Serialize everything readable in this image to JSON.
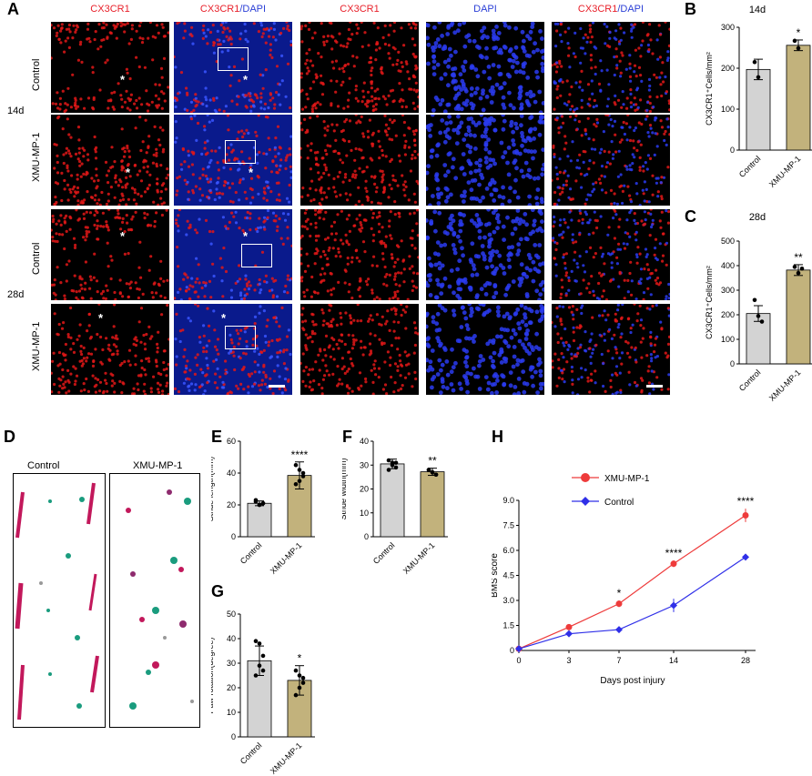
{
  "panels": {
    "A": "A",
    "B": "B",
    "C": "C",
    "D": "D",
    "E": "E",
    "F": "F",
    "G": "G",
    "H": "H"
  },
  "column_headers": [
    {
      "parts": [
        {
          "text": "CX3CR1",
          "color": "red"
        }
      ]
    },
    {
      "parts": [
        {
          "text": "CX3CR1",
          "color": "red"
        },
        {
          "text": "/DAPI",
          "color": "blue"
        }
      ]
    },
    {
      "parts": [
        {
          "text": "CX3CR1",
          "color": "red"
        }
      ]
    },
    {
      "parts": [
        {
          "text": "DAPI",
          "color": "blue"
        }
      ]
    },
    {
      "parts": [
        {
          "text": "CX3CR1",
          "color": "red"
        },
        {
          "text": "/DAPI",
          "color": "blue"
        }
      ]
    }
  ],
  "row_labels": [
    "Control",
    "XMU-MP-1",
    "Control",
    "XMU-MP-1"
  ],
  "time_labels": [
    "14d",
    "28d"
  ],
  "image_star": "*",
  "footprint_labels": [
    "Control",
    "XMU-MP-1"
  ],
  "colors": {
    "red": "#e8202a",
    "blue": "#2b3fd6",
    "control_bar": "#d3d3d3",
    "treat_bar": "#c2b27c",
    "line_red": "#ee3b3b",
    "line_blue": "#2f2fe8"
  },
  "chart_data": [
    {
      "id": "B",
      "type": "bar",
      "title": "14d",
      "ylabel": "CX3CR1⁺Cells/mm²",
      "categories": [
        "Control",
        "XMU-MP-1"
      ],
      "values": [
        197,
        256
      ],
      "errors": [
        25,
        13
      ],
      "points": [
        [
          215,
          178
        ],
        [
          267,
          249
        ]
      ],
      "ylim": [
        0,
        300
      ],
      "yticks": [
        0,
        100,
        200,
        300
      ],
      "sig": [
        "",
        "*"
      ]
    },
    {
      "id": "C",
      "type": "bar",
      "title": "28d",
      "ylabel": "CX3CR1⁺Cells/mm²",
      "categories": [
        "Control",
        "XMU-MP-1"
      ],
      "values": [
        205,
        382
      ],
      "errors": [
        32,
        22
      ],
      "points": [
        [
          260,
          195,
          172
        ],
        [
          395,
          370,
          388
        ]
      ],
      "ylim": [
        0,
        500
      ],
      "yticks": [
        0,
        100,
        200,
        300,
        400,
        500
      ],
      "sig": [
        "",
        "**"
      ]
    },
    {
      "id": "E",
      "type": "bar",
      "ylabel": "Stride length(mm)",
      "categories": [
        "Control",
        "XMU-MP-1"
      ],
      "values": [
        21,
        38.5
      ],
      "errors": [
        1.5,
        8.5
      ],
      "points": [
        [
          22,
          20,
          21,
          23,
          20,
          21
        ],
        [
          45,
          42,
          38,
          33,
          35,
          40
        ]
      ],
      "ylim": [
        0,
        60
      ],
      "yticks": [
        0,
        20,
        40,
        60
      ],
      "sig": [
        "",
        "****"
      ]
    },
    {
      "id": "F",
      "type": "bar",
      "ylabel": "Stride width(mm)",
      "categories": [
        "Control",
        "XMU-MP-1"
      ],
      "values": [
        30.5,
        27.2
      ],
      "errors": [
        2,
        1.5
      ],
      "points": [
        [
          32,
          31,
          29,
          28,
          30,
          31
        ],
        [
          28,
          27,
          26,
          28,
          27,
          26
        ]
      ],
      "ylim": [
        0,
        40
      ],
      "yticks": [
        0,
        10,
        20,
        30,
        40
      ],
      "sig": [
        "",
        "**"
      ]
    },
    {
      "id": "G",
      "type": "bar",
      "ylabel": "Paw rotation(degree)",
      "categories": [
        "Control",
        "XMU-MP-1"
      ],
      "values": [
        31,
        23
      ],
      "errors": [
        6,
        6
      ],
      "points": [
        [
          39,
          38,
          27,
          25,
          29,
          33
        ],
        [
          27,
          25,
          22,
          17,
          20,
          24
        ]
      ],
      "ylim": [
        0,
        50
      ],
      "yticks": [
        0,
        10,
        20,
        30,
        40,
        50
      ],
      "sig": [
        "",
        "*"
      ]
    },
    {
      "id": "H",
      "type": "line",
      "xlabel": "Days post injury",
      "ylabel": "BMS score",
      "x": [
        0,
        3,
        7,
        14,
        28
      ],
      "xticklabels": [
        "0",
        "3",
        "7",
        "14",
        "28"
      ],
      "ylim": [
        0,
        9
      ],
      "yticks": [
        "0",
        "1.5",
        "3.0",
        "4.5",
        "6.0",
        "7.5",
        "9.0"
      ],
      "series": [
        {
          "name": "XMU-MP-1",
          "values": [
            0.1,
            1.4,
            2.8,
            5.2,
            8.1
          ],
          "errors": [
            0.1,
            0.1,
            0.2,
            0.2,
            0.4
          ],
          "marker": "circle",
          "color": "#ee3b3b"
        },
        {
          "name": "Control",
          "values": [
            0.1,
            1.0,
            1.25,
            2.7,
            5.6
          ],
          "errors": [
            0.1,
            0.1,
            0.1,
            0.4,
            0.1
          ],
          "marker": "diamond",
          "color": "#2f2fe8"
        }
      ],
      "sig": [
        "",
        "",
        "*",
        "****",
        "****"
      ]
    }
  ]
}
